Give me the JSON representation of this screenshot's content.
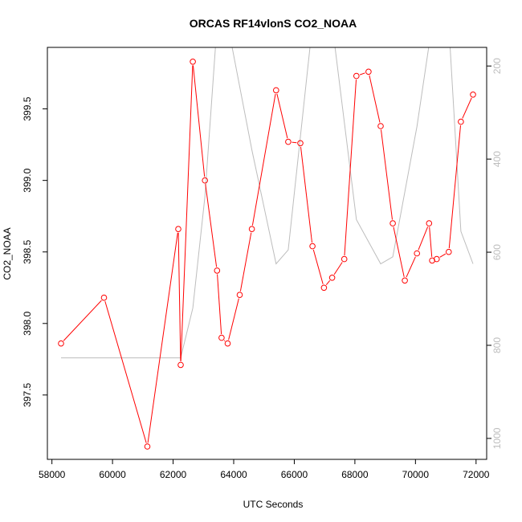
{
  "chart_data": {
    "type": "line",
    "title": "ORCAS RF14vlonS CO2_NOAA",
    "xlabel": "UTC Seconds",
    "ylabel": "CO2_NOAA",
    "xlim": [
      57850,
      72350
    ],
    "ylim": [
      397.05,
      399.93
    ],
    "x_ticks": [
      58000,
      60000,
      62000,
      64000,
      66000,
      68000,
      70000,
      72000
    ],
    "x_tick_labels": [
      "58000",
      "60000",
      "62000",
      "64000",
      "66000",
      "68000",
      "70000",
      "72000"
    ],
    "y_ticks": [
      397.5,
      398.0,
      398.5,
      399.0,
      399.5
    ],
    "y_tick_labels": [
      "397.5",
      "398.0",
      "398.5",
      "399.0",
      "399.5"
    ],
    "y2_lim": [
      1045,
      160
    ],
    "y2_ticks": [
      200,
      400,
      600,
      800,
      1000
    ],
    "y2_tick_labels": [
      "200",
      "400",
      "600",
      "800",
      "1000"
    ],
    "colors": {
      "co2": "#ff0000",
      "secondary": "#bdbdbd",
      "axis": "#000000"
    },
    "series": [
      {
        "color": "#ff0000",
        "axis": "left",
        "markers": "open-circle",
        "x": [
          58300,
          59720,
          61150,
          62170,
          62250,
          62650,
          63050,
          63450,
          63600,
          63800,
          64200,
          64600,
          65400,
          65800,
          66200,
          66600,
          66980,
          67250,
          67650,
          68050,
          68450,
          68850,
          69250,
          69650,
          70050,
          70450,
          70550,
          70700,
          71100,
          71500,
          71900
        ],
        "y": [
          397.86,
          398.18,
          397.14,
          398.66,
          397.71,
          399.83,
          399.0,
          398.37,
          397.9,
          397.86,
          398.2,
          398.66,
          399.63,
          399.27,
          399.26,
          398.54,
          398.25,
          398.32,
          398.45,
          399.73,
          399.76,
          399.38,
          398.7,
          398.3,
          398.49,
          398.7,
          398.44,
          398.45,
          398.5,
          399.41,
          399.6
        ]
      },
      {
        "color": "#bdbdbd",
        "axis": "right",
        "markers": "none",
        "x": [
          58300,
          62250,
          62650,
          63050,
          63450,
          63800,
          64600,
          65400,
          65800,
          66600,
          67250,
          68050,
          68850,
          69250,
          70050,
          70550,
          71100,
          71500,
          71900
        ],
        "y": [
          827,
          827,
          720,
          480,
          110,
          110,
          380,
          625,
          595,
          110,
          110,
          530,
          625,
          610,
          330,
          110,
          110,
          555,
          625
        ]
      }
    ]
  }
}
